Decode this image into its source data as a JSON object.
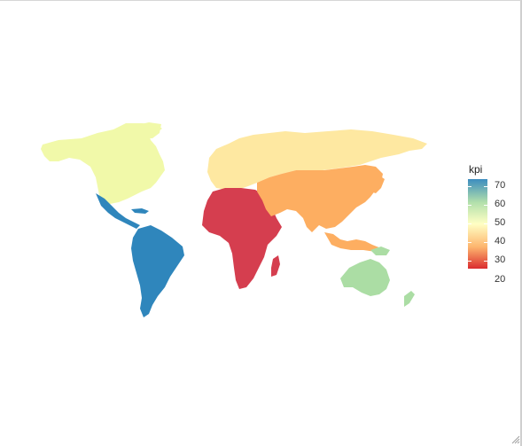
{
  "legend": {
    "title": "kpi",
    "labels": [
      "70",
      "60",
      "50",
      "40",
      "30",
      "20"
    ]
  },
  "chart_data": {
    "type": "choropleth",
    "title": "",
    "variable": "kpi",
    "scale": {
      "min": 20,
      "max": 70,
      "palette": "Spectral"
    },
    "regions": [
      {
        "region": "North America",
        "kpi": 52
      },
      {
        "region": "Central America",
        "kpi": 70
      },
      {
        "region": "South America",
        "kpi": 70
      },
      {
        "region": "Europe & Russia",
        "kpi": 46
      },
      {
        "region": "Africa",
        "kpi": 20
      },
      {
        "region": "Asia",
        "kpi": 33
      },
      {
        "region": "Southeast Asia",
        "kpi": 33
      },
      {
        "region": "Oceania",
        "kpi": 60
      }
    ]
  },
  "colors": {
    "c70": "#2f86bc",
    "c60": "#abdda4",
    "c50": "#f1f9a9",
    "c46": "#fee8a1",
    "c33": "#fdae61",
    "c20": "#d53e4f"
  }
}
